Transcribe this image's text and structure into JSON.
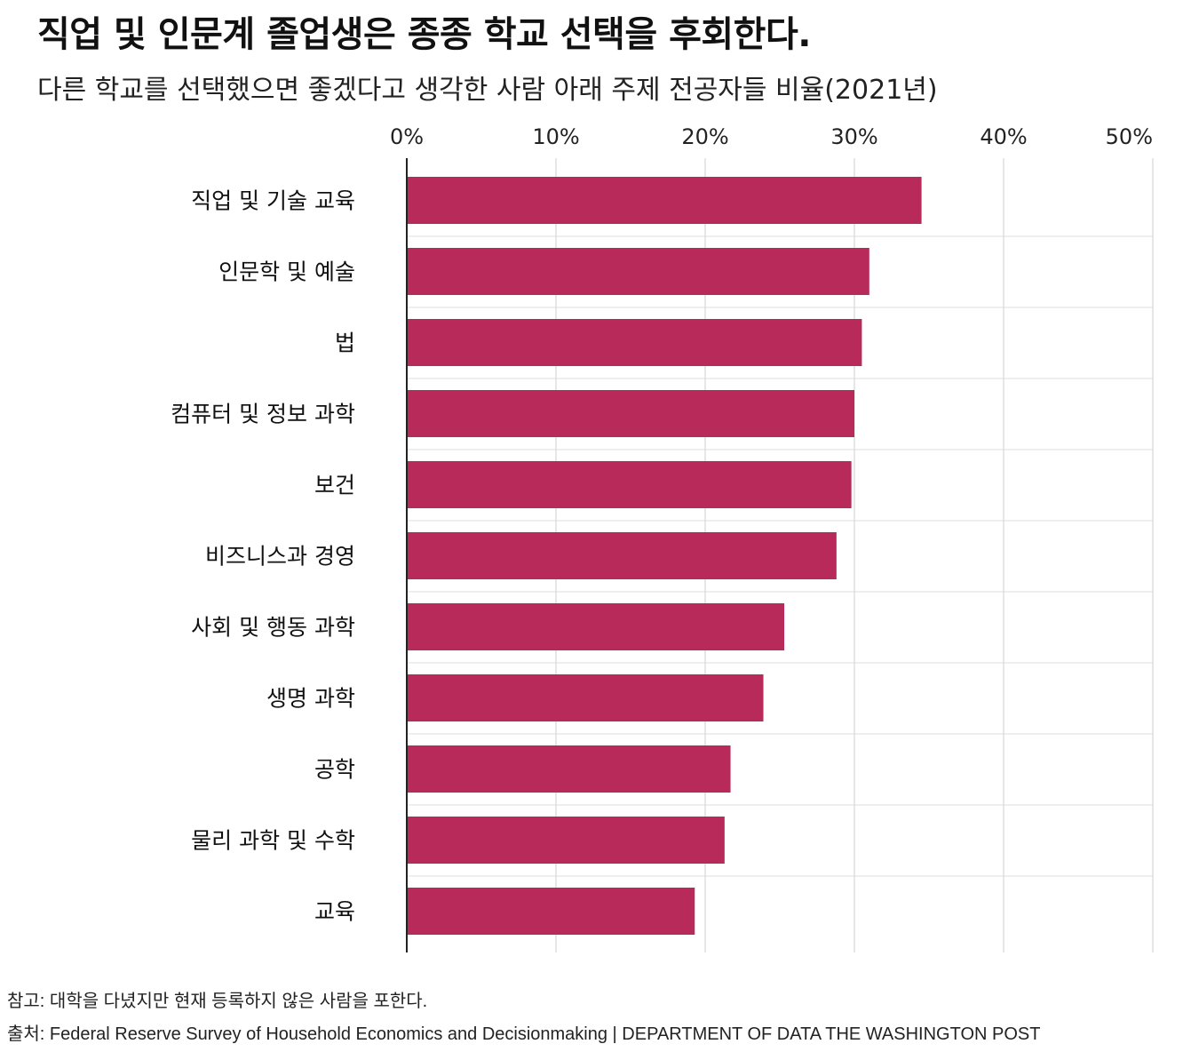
{
  "title": "직업 및 인문계 졸업생은 종종 학교 선택을 후회한다.",
  "subtitle": "다른 학교를 선택했으면 좋겠다고 생각한 사람 아래  주제 전공자들 비율(2021년)",
  "note": "참고: 대학을 다녔지만 현재 등록하지 않은 사람을 포한다.",
  "source": "출처: Federal Reserve Survey of Household Economics and Decisionmaking | DEPARTMENT OF DATA THE WASHINGTON POST",
  "colors": {
    "bar": "#b72a5a",
    "grid": "#dddddd",
    "axis": "#222222"
  },
  "chart_data": {
    "type": "bar",
    "orientation": "horizontal",
    "categories": [
      "직업 및 기술 교육",
      "인문학 및 예술",
      "법",
      "컴퓨터 및 정보 과학",
      "보건",
      "비즈니스과 경영",
      "사회 및 행동 과학",
      "생명 과학",
      "공학",
      "물리 과학 및 수학",
      "교육"
    ],
    "values": [
      34.5,
      31.0,
      30.5,
      30.0,
      29.8,
      28.8,
      25.3,
      23.9,
      21.7,
      21.3,
      19.3
    ],
    "xlim": [
      0,
      50
    ],
    "xticks": [
      0,
      10,
      20,
      30,
      40,
      50
    ],
    "xtick_labels": [
      "0%",
      "10%",
      "20%",
      "30%",
      "40%",
      "50%"
    ],
    "tick_position": "top",
    "grid": true
  }
}
